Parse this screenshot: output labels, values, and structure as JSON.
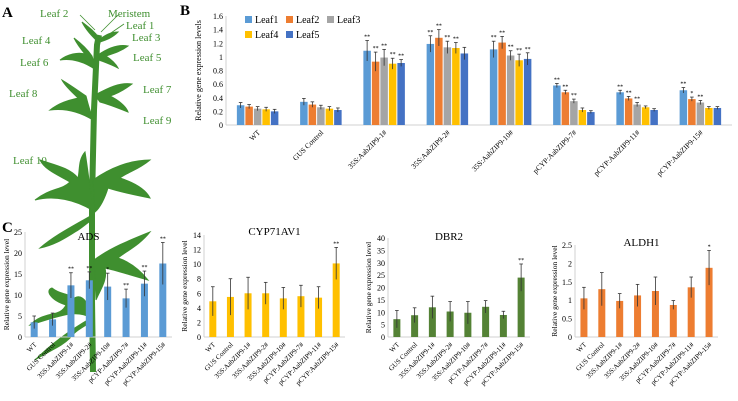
{
  "panels": {
    "a": {
      "letter": "A",
      "leaf_labels": [
        "Leaf 2",
        "Meristem",
        "Leaf 1",
        "Leaf 3",
        "Leaf 4",
        "Leaf 5",
        "Leaf 6",
        "Leaf 7",
        "Leaf 8",
        "Leaf 9",
        "Leaf 10"
      ]
    },
    "b": {
      "letter": "B"
    },
    "c": {
      "letter": "C"
    }
  },
  "colors": {
    "leaf": "#3f8f2f",
    "leaf_text": "#3f8f2f",
    "Leaf1": "#5b9bd5",
    "Leaf2": "#ed7d31",
    "Leaf3": "#a5a5a5",
    "Leaf4": "#ffc000",
    "Leaf5": "#4472c4",
    "ADS": "#5b9bd5",
    "CYP71AV1": "#ffc000",
    "DBR2": "#548235",
    "ALDH1": "#ed7d31",
    "axis": "#d0d0d0"
  },
  "chart_data": [
    {
      "id": "B",
      "type": "bar",
      "title": "",
      "xlabel": "",
      "ylabel": "Relative gene expression levels",
      "ylim": [
        0,
        1.6
      ],
      "yticks": [
        0,
        0.2,
        0.4,
        0.6,
        0.8,
        1,
        1.2,
        1.4,
        1.6
      ],
      "ytick_labels": [
        "0",
        "0.2",
        "0.4",
        "0.6",
        "0.8",
        "1",
        "1.2",
        "1.4",
        "1.6"
      ],
      "legend": "top-left",
      "categories": [
        "WT",
        "GUS Control",
        "35S:AabZIP9-1#",
        "35S:AabZIP9-2#",
        "35S:AabZIP9-10#",
        "pCYP:AabZIP9-7#",
        "pCYP:AabZIP9-11#",
        "pCYP:AabZIP9-15#"
      ],
      "series": [
        {
          "name": "Leaf1",
          "values": [
            0.29,
            0.34,
            1.09,
            1.19,
            1.11,
            0.58,
            0.48,
            0.51
          ],
          "errors": [
            0.04,
            0.05,
            0.15,
            0.12,
            0.12,
            0.03,
            0.03,
            0.04
          ],
          "sig": [
            "",
            "",
            "**",
            "**",
            "**",
            "**",
            "**",
            "**"
          ]
        },
        {
          "name": "Leaf2",
          "values": [
            0.27,
            0.3,
            0.93,
            1.28,
            1.21,
            0.48,
            0.39,
            0.38
          ],
          "errors": [
            0.03,
            0.04,
            0.14,
            0.12,
            0.09,
            0.03,
            0.03,
            0.03
          ],
          "sig": [
            "",
            "",
            "**",
            "**",
            "**",
            "**",
            "**",
            "*"
          ]
        },
        {
          "name": "Leaf3",
          "values": [
            0.24,
            0.26,
            0.99,
            1.14,
            1.02,
            0.35,
            0.3,
            0.33
          ],
          "errors": [
            0.03,
            0.03,
            0.12,
            0.09,
            0.07,
            0.03,
            0.03,
            0.03
          ],
          "sig": [
            "",
            "",
            "**",
            "**",
            "**",
            "**",
            "**",
            "**"
          ]
        },
        {
          "name": "Leaf4",
          "values": [
            0.23,
            0.24,
            0.9,
            1.13,
            0.95,
            0.22,
            0.26,
            0.25
          ],
          "errors": [
            0.03,
            0.03,
            0.08,
            0.08,
            0.09,
            0.03,
            0.02,
            0.02
          ],
          "sig": [
            "",
            "",
            "**",
            "**",
            "**",
            "",
            "",
            ""
          ]
        },
        {
          "name": "Leaf5",
          "values": [
            0.2,
            0.22,
            0.91,
            1.05,
            0.97,
            0.19,
            0.22,
            0.25
          ],
          "errors": [
            0.03,
            0.03,
            0.05,
            0.09,
            0.09,
            0.02,
            0.02,
            0.02
          ],
          "sig": [
            "",
            "",
            "**",
            "",
            "**",
            "",
            "",
            ""
          ]
        }
      ]
    },
    {
      "id": "C-ADS",
      "type": "bar",
      "title": "ADS",
      "ylabel": "Relative gene expression level",
      "ylim": [
        0,
        25
      ],
      "yticks": [
        0,
        5,
        10,
        15,
        20,
        25
      ],
      "ytick_labels": [
        "0",
        "5",
        "10",
        "15",
        "20",
        "25"
      ],
      "categories": [
        "WT",
        "GUS Control",
        "35S:AabZIP9-1#",
        "35S:AabZIP9-2#",
        "35S:AabZIP9-10#",
        "pCYP:AabZIP9-7#",
        "pCYP:AabZIP9-11#",
        "pCYP:AabZIP9-15#"
      ],
      "values": [
        3.5,
        4.2,
        12.3,
        13.5,
        12.0,
        9.2,
        12.7,
        17.5
      ],
      "errors": [
        1.5,
        1.5,
        3.0,
        2.0,
        3.2,
        2.2,
        3.0,
        5.0
      ],
      "sig": [
        "",
        "",
        "**",
        "**",
        "*",
        "**",
        "**",
        "**"
      ]
    },
    {
      "id": "C-CYP71AV1",
      "type": "bar",
      "title": "CYP71AV1",
      "ylabel": "Relative gene expression level",
      "ylim": [
        0,
        14
      ],
      "yticks": [
        0,
        2,
        4,
        6,
        8,
        10,
        12,
        14
      ],
      "ytick_labels": [
        "0",
        "2",
        "4",
        "6",
        "8",
        "10",
        "12",
        "14"
      ],
      "categories": [
        "WT",
        "GUS Control",
        "35S:AabZIP9-1#",
        "35S:AabZIP9-2#",
        "35S:AabZIP9-10#",
        "pCYP:AabZIP9-7#",
        "pCYP:AabZIP9-11#",
        "pCYP:AabZIP9-15#"
      ],
      "values": [
        4.9,
        5.5,
        6.0,
        6.0,
        5.3,
        5.6,
        5.4,
        10.1
      ],
      "errors": [
        2.0,
        2.5,
        2.2,
        1.5,
        1.5,
        1.5,
        1.5,
        2.2
      ],
      "sig": [
        "",
        "",
        "",
        "",
        "",
        "",
        "",
        "**"
      ]
    },
    {
      "id": "C-DBR2",
      "type": "bar",
      "title": "DBR2",
      "ylabel": "Relative gene expression level",
      "ylim": [
        0,
        40
      ],
      "yticks": [
        0,
        5,
        10,
        15,
        20,
        25,
        30,
        35,
        40
      ],
      "ytick_labels": [
        "0",
        "5",
        "10",
        "15",
        "20",
        "25",
        "30",
        "35",
        "40"
      ],
      "categories": [
        "WT",
        "GUS Control",
        "35S:AabZIP9-1#",
        "35S:AabZIP9-2#",
        "35S:AabZIP9-10#",
        "pCYP:AabZIP9-7#",
        "pCYP:AabZIP9-11#",
        "pCYP:AabZIP9-15#"
      ],
      "values": [
        7.2,
        8.8,
        12.0,
        10.3,
        9.8,
        12.2,
        8.9,
        24.0
      ],
      "errors": [
        3.5,
        3.0,
        4.5,
        4.0,
        4.5,
        2.5,
        1.5,
        5.5
      ],
      "sig": [
        "",
        "",
        "",
        "",
        "",
        "",
        "",
        "**"
      ]
    },
    {
      "id": "C-ALDH1",
      "type": "bar",
      "title": "ALDH1",
      "ylabel": "Relative gene expression level",
      "ylim": [
        0,
        2.5
      ],
      "yticks": [
        0,
        0.5,
        1,
        1.5,
        2,
        2.5
      ],
      "ytick_labels": [
        "0",
        "0.5",
        "1",
        "1.5",
        "2",
        "2.5"
      ],
      "categories": [
        "WT",
        "GUS Control",
        "35S:AabZIP9-1#",
        "35S:AabZIP9-2#",
        "35S:AabZIP9-10#",
        "pCYP:AabZIP9-7#",
        "pCYP:AabZIP9-11#",
        "pCYP:AabZIP9-15#"
      ],
      "values": [
        1.05,
        1.3,
        0.98,
        1.13,
        1.25,
        0.87,
        1.35,
        1.88
      ],
      "errors": [
        0.3,
        0.45,
        0.2,
        0.3,
        0.38,
        0.12,
        0.28,
        0.47
      ],
      "sig": [
        "",
        "",
        "",
        "",
        "",
        "",
        "",
        "*"
      ]
    }
  ]
}
